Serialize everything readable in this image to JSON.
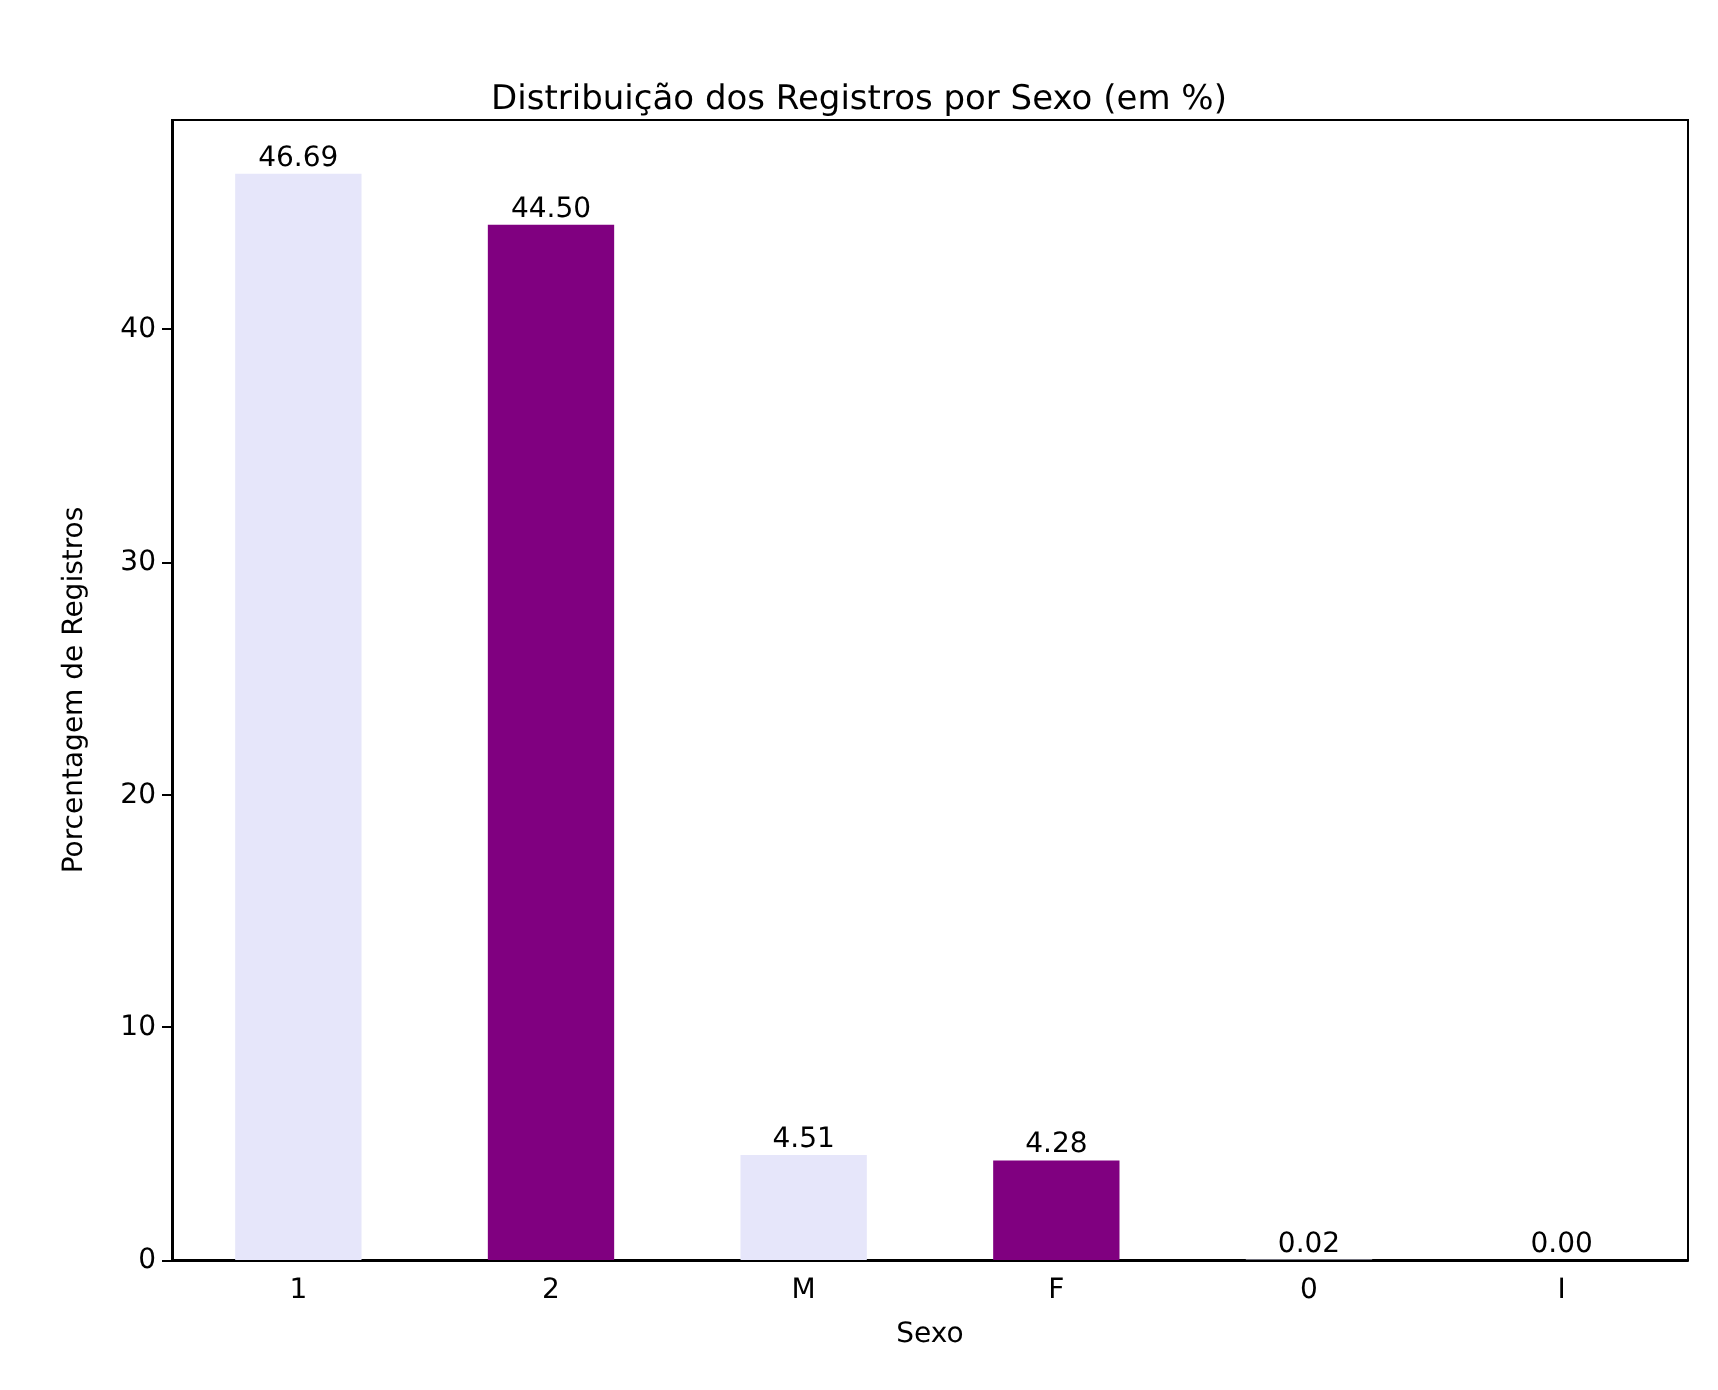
{
  "chart_data": {
    "type": "bar",
    "title": "Distribuição dos Registros por Sexo (em %)",
    "xlabel": "Sexo",
    "ylabel": "Porcentagem de Registros",
    "categories": [
      "1",
      "2",
      "M",
      "F",
      "0",
      "I"
    ],
    "values": [
      46.69,
      44.5,
      4.51,
      4.28,
      0.02,
      0.0
    ],
    "colors": [
      "#e6e6fa",
      "#800080",
      "#e6e6fa",
      "#800080",
      "#e6e6fa",
      "#800080"
    ],
    "value_labels": [
      "46.69",
      "44.50",
      "4.51",
      "4.28",
      "0.02",
      "0.00"
    ],
    "ylim": [
      0,
      49
    ],
    "yticks": [
      0,
      10,
      20,
      30,
      40
    ]
  }
}
